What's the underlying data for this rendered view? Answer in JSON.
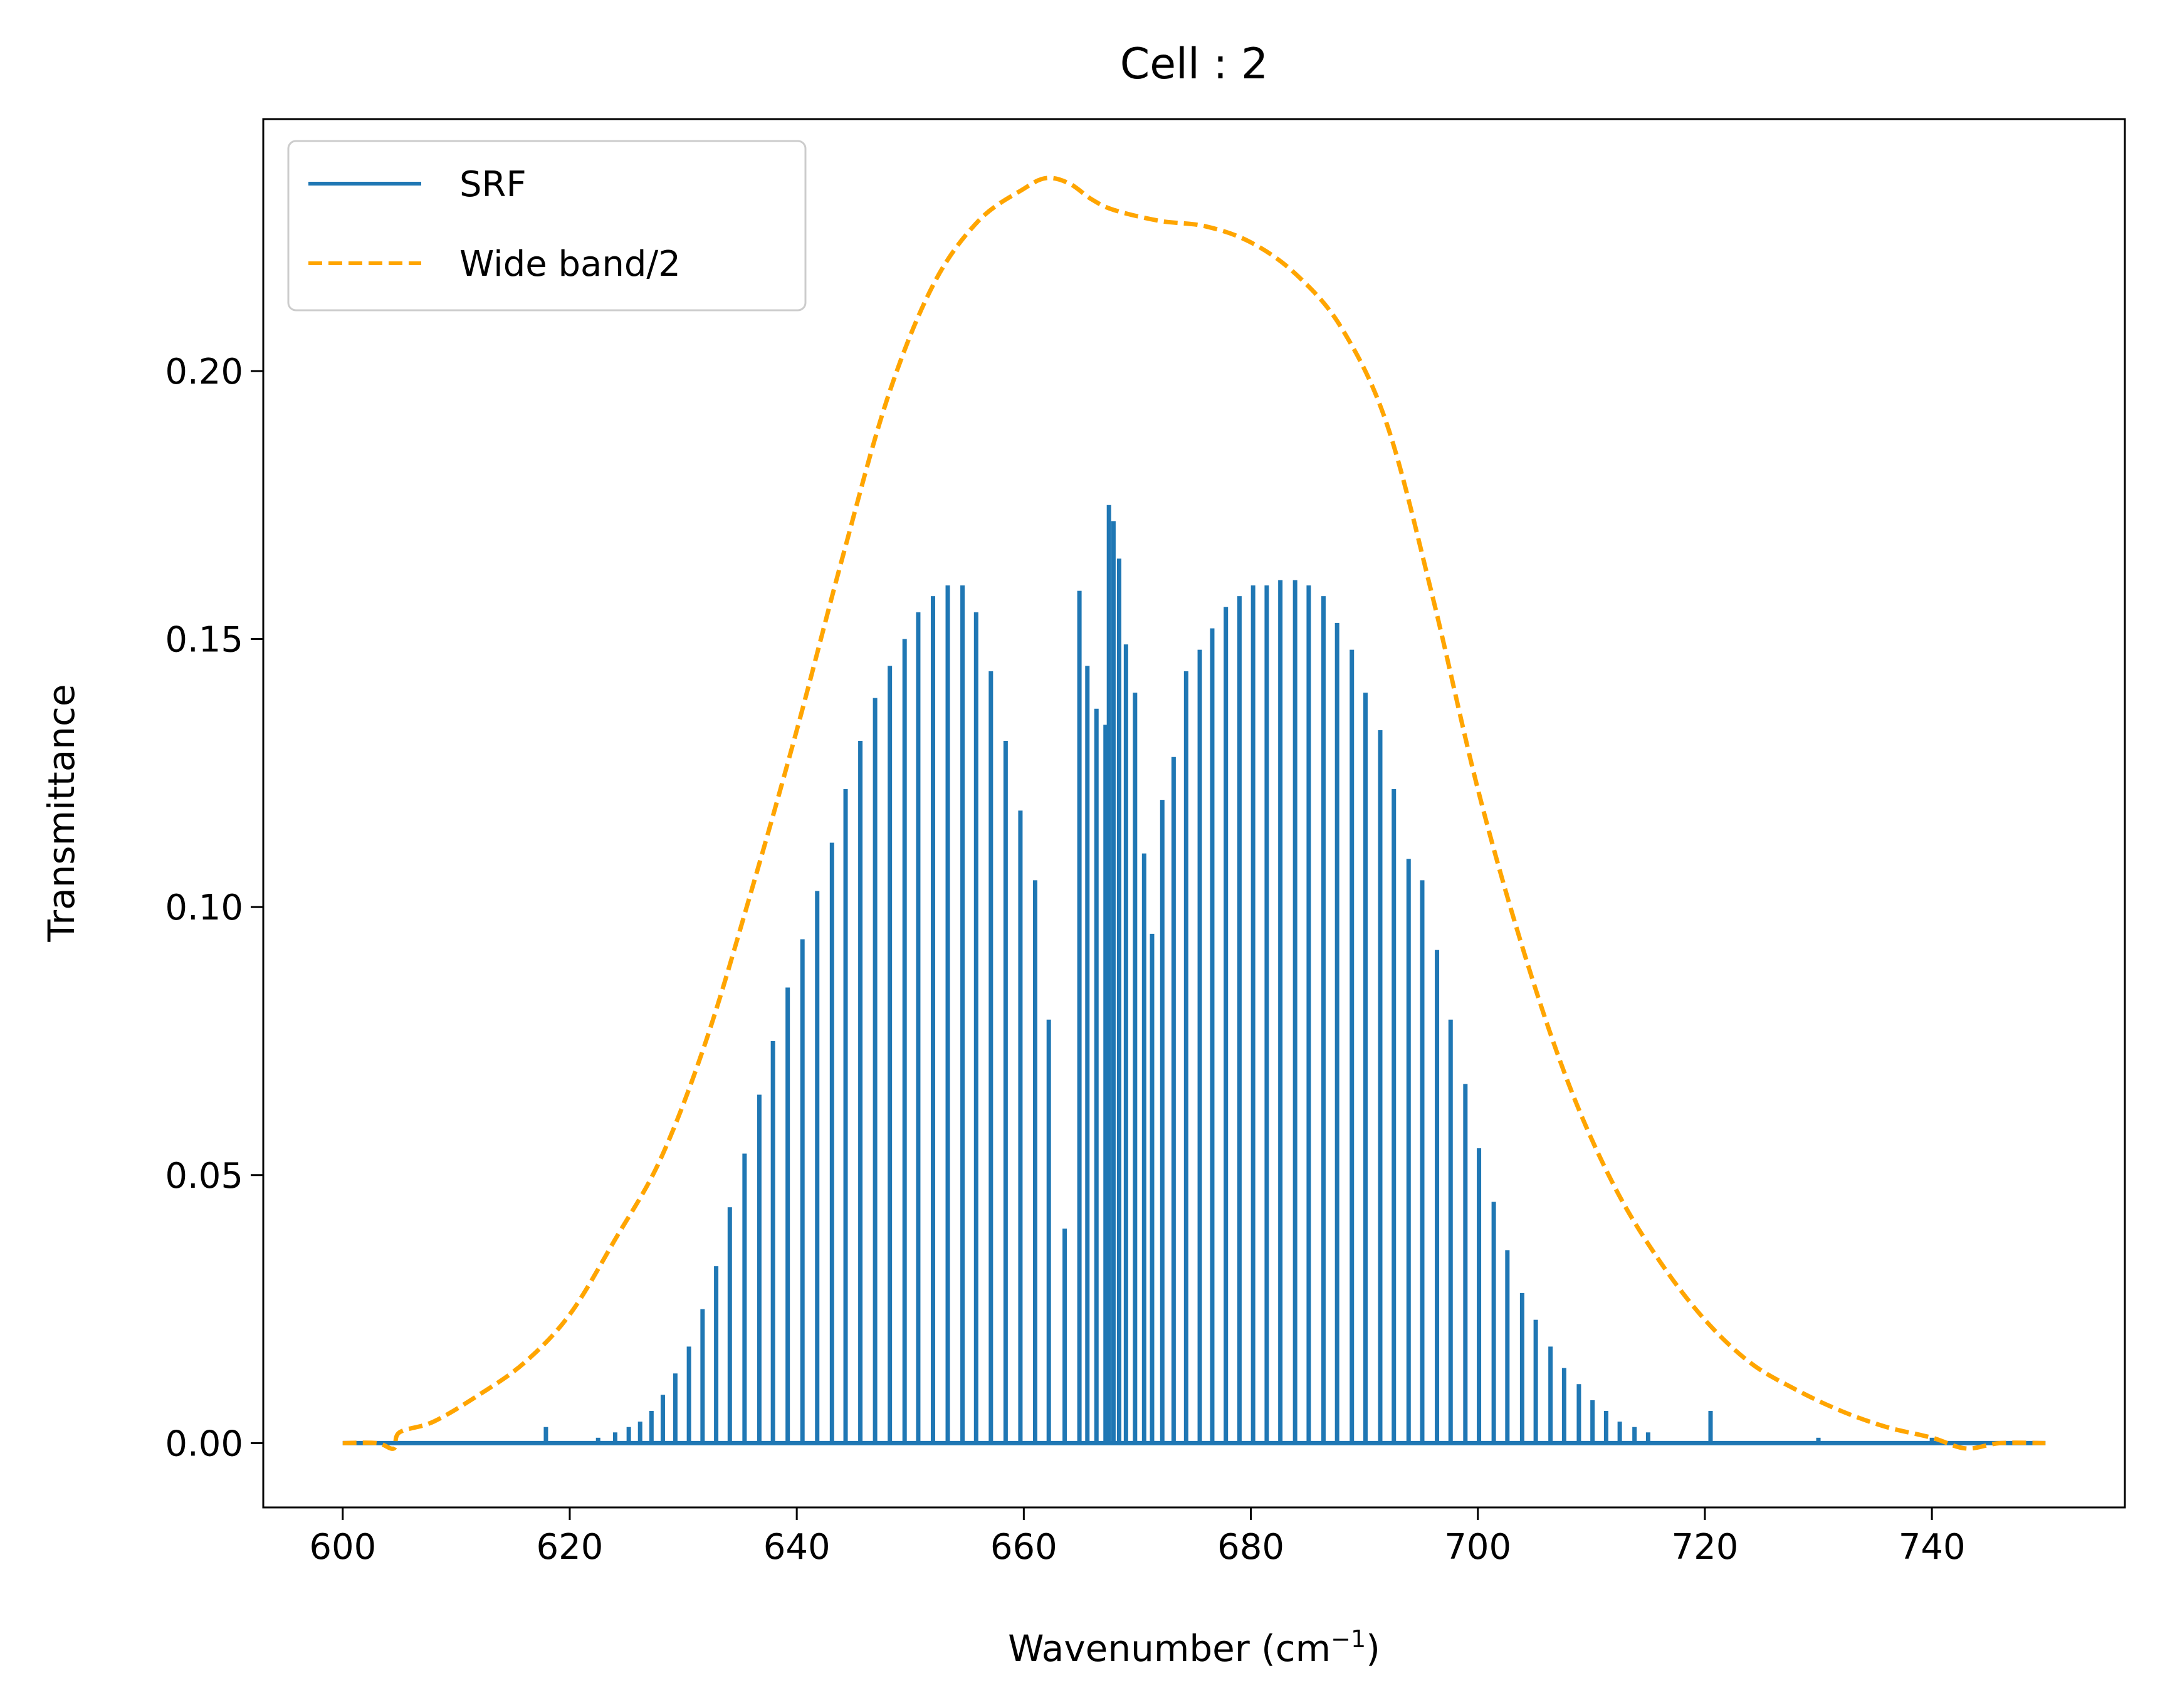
{
  "chart_data": {
    "type": "line",
    "title": "Cell : 2",
    "xlabel_main": "Wavenumber (cm",
    "xlabel_sup": "−1",
    "xlabel_close": ")",
    "ylabel": "Transmittance",
    "xlim": [
      593,
      757
    ],
    "ylim": [
      -0.012,
      0.247
    ],
    "xticks": [
      600,
      620,
      640,
      660,
      680,
      700,
      720,
      740
    ],
    "xtick_labels": [
      "600",
      "620",
      "640",
      "660",
      "680",
      "700",
      "720",
      "740"
    ],
    "yticks": [
      0.0,
      0.05,
      0.1,
      0.15,
      0.2
    ],
    "ytick_labels": [
      "0.00",
      "0.05",
      "0.10",
      "0.15",
      "0.20"
    ],
    "grid": false,
    "legend_position": "top-left",
    "series": [
      {
        "name": "SRF",
        "color": "#1f77b4",
        "style": "solid",
        "baseline_range": [
          600,
          750
        ],
        "spike_peaks": [
          [
            617.9,
            0.003
          ],
          [
            622.5,
            0.001
          ],
          [
            624.0,
            0.002
          ],
          [
            625.2,
            0.003
          ],
          [
            626.2,
            0.004
          ],
          [
            627.2,
            0.006
          ],
          [
            628.2,
            0.009
          ],
          [
            629.3,
            0.013
          ],
          [
            630.5,
            0.018
          ],
          [
            631.7,
            0.025
          ],
          [
            632.9,
            0.033
          ],
          [
            634.1,
            0.044
          ],
          [
            635.4,
            0.054
          ],
          [
            636.7,
            0.065
          ],
          [
            637.9,
            0.075
          ],
          [
            639.2,
            0.085
          ],
          [
            640.5,
            0.094
          ],
          [
            641.8,
            0.103
          ],
          [
            643.1,
            0.112
          ],
          [
            644.3,
            0.122
          ],
          [
            645.6,
            0.131
          ],
          [
            646.9,
            0.139
          ],
          [
            648.2,
            0.145
          ],
          [
            649.5,
            0.15
          ],
          [
            650.7,
            0.155
          ],
          [
            652.0,
            0.158
          ],
          [
            653.3,
            0.16
          ],
          [
            654.6,
            0.16
          ],
          [
            655.8,
            0.155
          ],
          [
            657.1,
            0.144
          ],
          [
            658.4,
            0.131
          ],
          [
            659.7,
            0.118
          ],
          [
            661.0,
            0.105
          ],
          [
            662.2,
            0.079
          ],
          [
            663.6,
            0.04
          ],
          [
            664.9,
            0.159
          ],
          [
            665.6,
            0.145
          ],
          [
            666.4,
            0.137
          ],
          [
            667.2,
            0.134
          ],
          [
            667.5,
            0.175
          ],
          [
            667.9,
            0.172
          ],
          [
            668.4,
            0.165
          ],
          [
            669.0,
            0.149
          ],
          [
            669.8,
            0.14
          ],
          [
            670.6,
            0.11
          ],
          [
            671.3,
            0.095
          ],
          [
            672.2,
            0.12
          ],
          [
            673.2,
            0.128
          ],
          [
            674.3,
            0.144
          ],
          [
            675.5,
            0.148
          ],
          [
            676.6,
            0.152
          ],
          [
            677.8,
            0.156
          ],
          [
            679.0,
            0.158
          ],
          [
            680.2,
            0.16
          ],
          [
            681.4,
            0.16
          ],
          [
            682.6,
            0.161
          ],
          [
            683.9,
            0.161
          ],
          [
            685.1,
            0.16
          ],
          [
            686.4,
            0.158
          ],
          [
            687.6,
            0.153
          ],
          [
            688.9,
            0.148
          ],
          [
            690.1,
            0.14
          ],
          [
            691.4,
            0.133
          ],
          [
            692.6,
            0.122
          ],
          [
            693.9,
            0.109
          ],
          [
            695.1,
            0.105
          ],
          [
            696.4,
            0.092
          ],
          [
            697.6,
            0.079
          ],
          [
            698.9,
            0.067
          ],
          [
            700.1,
            0.055
          ],
          [
            701.4,
            0.045
          ],
          [
            702.6,
            0.036
          ],
          [
            703.9,
            0.028
          ],
          [
            705.1,
            0.023
          ],
          [
            706.4,
            0.018
          ],
          [
            707.6,
            0.014
          ],
          [
            708.9,
            0.011
          ],
          [
            710.1,
            0.008
          ],
          [
            711.3,
            0.006
          ],
          [
            712.5,
            0.004
          ],
          [
            713.8,
            0.003
          ],
          [
            715.0,
            0.002
          ],
          [
            720.5,
            0.006
          ],
          [
            730.0,
            0.001
          ],
          [
            740.0,
            0.001
          ]
        ]
      },
      {
        "name": "Wide band/2",
        "color": "#ffa500",
        "style": "dashed",
        "x": [
          600,
          603,
          604.5,
          605,
          608,
          612,
          616,
          620,
          624,
          628,
          632,
          636,
          640,
          644,
          648,
          652,
          656,
          660,
          662,
          664,
          666,
          668,
          672,
          676,
          680,
          684,
          688,
          692,
          696,
          700,
          704,
          708,
          712,
          716,
          720,
          724,
          728,
          732,
          736,
          740,
          743,
          746,
          750
        ],
        "y": [
          0.0,
          0.0,
          -0.001,
          0.002,
          0.004,
          0.009,
          0.015,
          0.024,
          0.038,
          0.053,
          0.075,
          0.103,
          0.133,
          0.165,
          0.195,
          0.216,
          0.228,
          0.234,
          0.236,
          0.235,
          0.232,
          0.23,
          0.228,
          0.227,
          0.224,
          0.218,
          0.208,
          0.19,
          0.158,
          0.122,
          0.092,
          0.067,
          0.048,
          0.034,
          0.023,
          0.015,
          0.01,
          0.006,
          0.003,
          0.001,
          -0.001,
          0.0,
          0.0
        ]
      }
    ]
  }
}
